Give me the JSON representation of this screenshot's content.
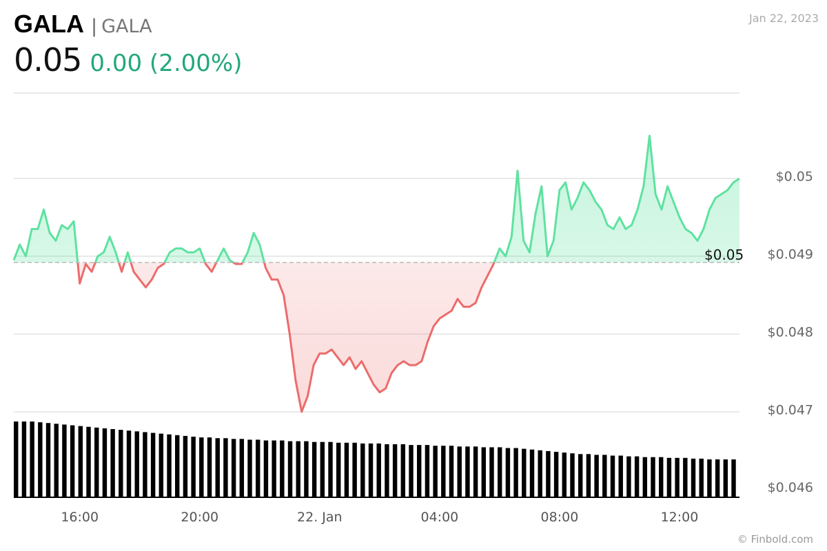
{
  "header": {
    "symbol": "GALA",
    "separator": "|",
    "name": "GALA",
    "price": "0.05",
    "change": "0.00 (2.00%)",
    "date": "Jan 22, 2023"
  },
  "credit": "© Finbold.com",
  "colors": {
    "up": "#5ee2a0",
    "down": "#ec6b6b",
    "change_text": "#22a879",
    "grid": "#e2e2e2",
    "volume": "#000000"
  },
  "chart_data": {
    "type": "area",
    "title": "",
    "xlabel": "",
    "ylabel": "",
    "ylim": [
      0.0459,
      0.0511
    ],
    "baseline": 0.04892,
    "baseline_label": "$0.05",
    "x_ticks": [
      "16:00",
      "20:00",
      "22. Jan",
      "04:00",
      "08:00",
      "12:00"
    ],
    "x_tick_positions_hours": [
      16,
      20,
      24,
      28,
      32,
      36
    ],
    "x_range_hours": [
      13.8,
      38.0
    ],
    "y_ticks": [
      0.05,
      0.049,
      0.048,
      0.047,
      0.046
    ],
    "y_tick_labels": [
      "$0.05",
      "$0.049",
      "$0.048",
      "$0.047",
      "$0.046"
    ],
    "grid": true,
    "series": [
      {
        "hours": [
          13.8,
          14.0,
          14.2,
          14.4,
          14.6,
          14.8,
          15.0,
          15.2,
          15.4,
          15.6,
          15.8,
          16.0,
          16.2,
          16.4,
          16.6,
          16.8,
          17.0,
          17.2,
          17.4,
          17.6,
          17.8,
          18.0,
          18.2,
          18.4,
          18.6,
          18.8,
          19.0,
          19.2,
          19.4,
          19.6,
          19.8,
          20.0,
          20.2,
          20.4,
          20.6,
          20.8,
          21.0,
          21.2,
          21.4,
          21.6,
          21.8,
          22.0,
          22.2,
          22.4,
          22.6,
          22.8,
          23.0,
          23.2,
          23.4,
          23.6,
          23.8,
          24.0,
          24.2,
          24.4,
          24.6,
          24.8,
          25.0,
          25.2,
          25.4,
          25.6,
          25.8,
          26.0,
          26.2,
          26.4,
          26.6,
          26.8,
          27.0,
          27.2,
          27.4,
          27.6,
          27.8,
          28.0,
          28.2,
          28.4,
          28.6,
          28.8,
          29.0,
          29.2,
          29.4,
          29.6,
          29.8,
          30.0,
          30.2,
          30.4,
          30.6,
          30.8,
          31.0,
          31.2,
          31.4,
          31.6,
          31.8,
          32.0,
          32.2,
          32.4,
          32.6,
          32.8,
          33.0,
          33.2,
          33.4,
          33.6,
          33.8,
          34.0,
          34.2,
          34.4,
          34.6,
          34.8,
          35.0,
          35.2,
          35.4,
          35.6,
          35.8,
          36.0,
          36.2,
          36.4,
          36.6,
          36.8,
          37.0,
          37.2,
          37.4,
          37.6,
          37.8,
          38.0
        ],
        "values": [
          0.04895,
          0.04915,
          0.049,
          0.04935,
          0.04935,
          0.0496,
          0.0493,
          0.0492,
          0.0494,
          0.04935,
          0.04945,
          0.04865,
          0.0489,
          0.0488,
          0.049,
          0.04905,
          0.04925,
          0.04905,
          0.0488,
          0.04905,
          0.0488,
          0.0487,
          0.0486,
          0.0487,
          0.04885,
          0.0489,
          0.04905,
          0.0491,
          0.0491,
          0.04905,
          0.04905,
          0.0491,
          0.0489,
          0.0488,
          0.04895,
          0.0491,
          0.04895,
          0.0489,
          0.0489,
          0.04905,
          0.0493,
          0.04915,
          0.04885,
          0.0487,
          0.0487,
          0.0485,
          0.048,
          0.0474,
          0.047,
          0.0472,
          0.0476,
          0.04775,
          0.04775,
          0.0478,
          0.0477,
          0.0476,
          0.0477,
          0.04755,
          0.04765,
          0.0475,
          0.04735,
          0.04725,
          0.0473,
          0.0475,
          0.0476,
          0.04765,
          0.0476,
          0.0476,
          0.04765,
          0.0479,
          0.0481,
          0.0482,
          0.04825,
          0.0483,
          0.04845,
          0.04835,
          0.04835,
          0.0484,
          0.0486,
          0.04875,
          0.0489,
          0.0491,
          0.049,
          0.04925,
          0.0501,
          0.0492,
          0.04905,
          0.04955,
          0.0499,
          0.049,
          0.0492,
          0.04985,
          0.04995,
          0.0496,
          0.04975,
          0.04995,
          0.04985,
          0.0497,
          0.0496,
          0.0494,
          0.04935,
          0.0495,
          0.04935,
          0.0494,
          0.0496,
          0.0499,
          0.05055,
          0.0498,
          0.0496,
          0.0499,
          0.0497,
          0.0495,
          0.04935,
          0.0493,
          0.0492,
          0.04935,
          0.0496,
          0.04975,
          0.0498,
          0.04985,
          0.04995,
          0.05
        ]
      }
    ],
    "volume": {
      "note": "relative bar heights, decreasing left to right",
      "values": [
        1.0,
        1.0,
        1.0,
        0.99,
        0.98,
        0.97,
        0.96,
        0.95,
        0.94,
        0.93,
        0.92,
        0.91,
        0.9,
        0.89,
        0.88,
        0.87,
        0.86,
        0.85,
        0.84,
        0.83,
        0.82,
        0.81,
        0.8,
        0.79,
        0.79,
        0.78,
        0.78,
        0.77,
        0.77,
        0.76,
        0.76,
        0.75,
        0.75,
        0.75,
        0.74,
        0.74,
        0.74,
        0.73,
        0.73,
        0.73,
        0.72,
        0.72,
        0.72,
        0.71,
        0.71,
        0.71,
        0.7,
        0.7,
        0.7,
        0.69,
        0.69,
        0.69,
        0.68,
        0.68,
        0.68,
        0.67,
        0.67,
        0.67,
        0.66,
        0.66,
        0.66,
        0.65,
        0.65,
        0.64,
        0.63,
        0.62,
        0.61,
        0.6,
        0.59,
        0.58,
        0.57,
        0.57,
        0.56,
        0.56,
        0.55,
        0.55,
        0.54,
        0.54,
        0.53,
        0.53,
        0.53,
        0.52,
        0.52,
        0.52,
        0.51,
        0.51,
        0.5,
        0.5,
        0.5,
        0.5
      ]
    }
  }
}
